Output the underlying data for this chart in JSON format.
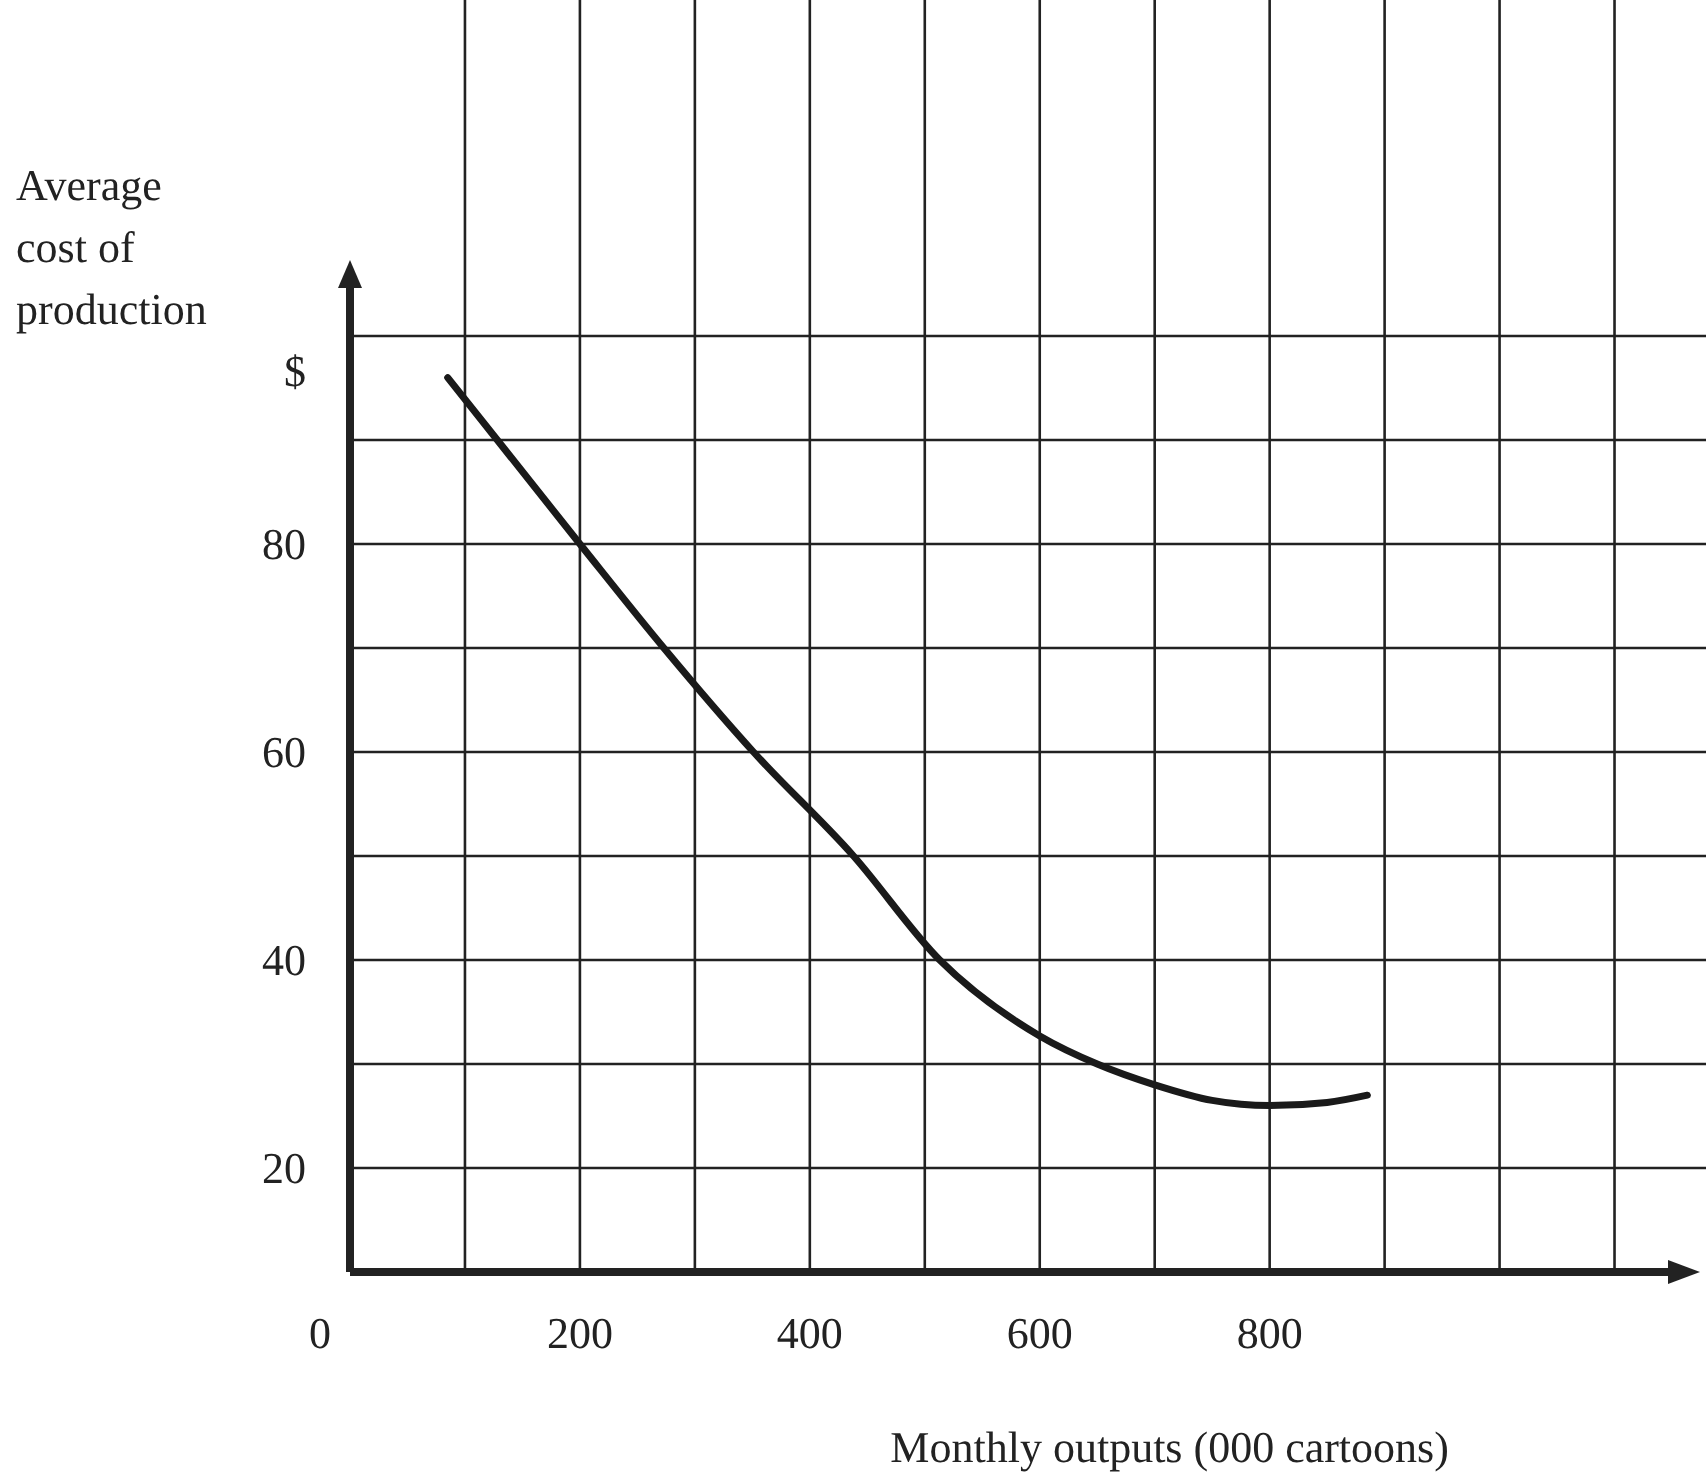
{
  "chart_data": {
    "type": "line",
    "xlabel": "Monthly outputs (000 cartoons)",
    "ylabel": "Average\ncost of\nproduction\n$",
    "x": [
      85,
      200,
      273,
      351,
      438,
      513,
      600,
      650,
      700,
      750,
      800,
      850,
      885
    ],
    "series": [
      {
        "color": "#1a1a1a",
        "values": [
          96,
          80,
          70,
          60,
          50,
          40,
          32.7,
          30,
          28,
          26.5,
          26,
          26.3,
          27
        ]
      }
    ],
    "xlim": [
      0,
      1150
    ],
    "ylim": [
      10,
      105
    ],
    "xticks": [
      0,
      {
        "value": 100,
        "label": null
      },
      200,
      {
        "value": 300,
        "label": null
      },
      400,
      {
        "value": 500,
        "label": null
      },
      600,
      {
        "value": 700,
        "label": null
      },
      800,
      {
        "value": 900,
        "label": null
      },
      {
        "value": 1000,
        "label": null
      },
      {
        "value": 1100,
        "label": null
      }
    ],
    "yticks": [
      20,
      {
        "value": 30,
        "label": null
      },
      40,
      {
        "value": 50,
        "label": null
      },
      60,
      {
        "value": 70,
        "label": null
      },
      80,
      {
        "value": 90,
        "label": null
      },
      {
        "value": 100,
        "label": null
      }
    ],
    "grid": true,
    "marker": "none",
    "line_style": "solid"
  }
}
